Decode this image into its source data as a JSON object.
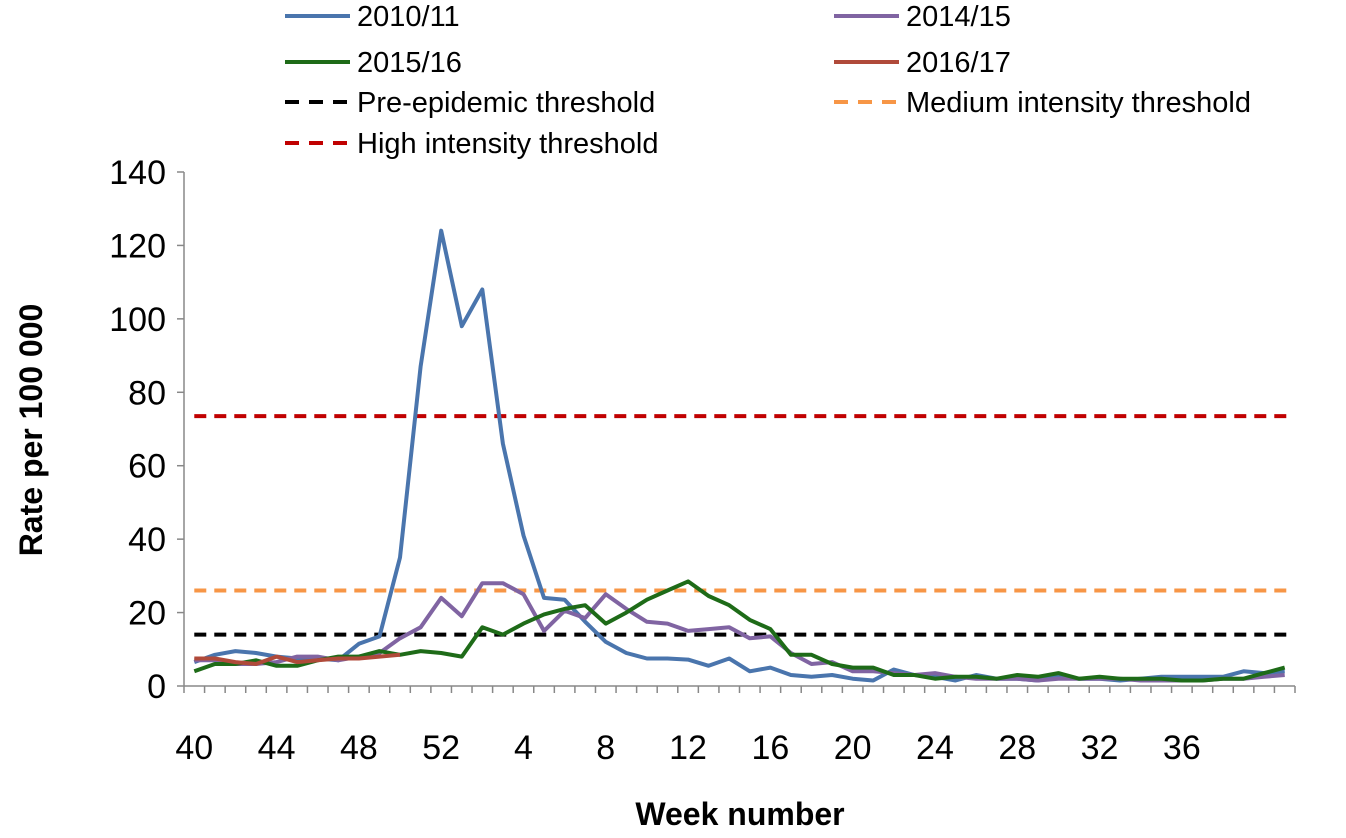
{
  "chart_data": {
    "type": "line",
    "xlabel": "Week number",
    "ylabel": "Rate per 100 000",
    "ylim": [
      0,
      140
    ],
    "yticks": [
      0,
      20,
      40,
      60,
      80,
      100,
      120,
      140
    ],
    "x_tick_labels": [
      "40",
      "44",
      "48",
      "52",
      "4",
      "8",
      "12",
      "16",
      "20",
      "24",
      "28",
      "32",
      "36"
    ],
    "grid": false,
    "legend_position": "top",
    "series": [
      {
        "name": "2010/11",
        "color": "#4a75ad",
        "style": "solid",
        "values": [
          6.5,
          8.5,
          9.5,
          9,
          8,
          7.5,
          7.5,
          7,
          11.5,
          13.5,
          35,
          87,
          124,
          98,
          108,
          66,
          41,
          24,
          23.5,
          17.5,
          12,
          9,
          7.5,
          7.5,
          7.2,
          5.5,
          7.5,
          4,
          5,
          3,
          2.5,
          3,
          2,
          1.5,
          4.5,
          3,
          2.5,
          1.5,
          3,
          2,
          2,
          1.5,
          2.5,
          2,
          2,
          1.5,
          2,
          2.5,
          2.5,
          2.5,
          2.5,
          4,
          3.5,
          4
        ]
      },
      {
        "name": "2014/15",
        "color": "#8064a2",
        "style": "solid",
        "values": [
          7,
          7,
          6,
          6,
          6.5,
          8,
          8,
          7,
          8,
          9,
          13,
          16,
          24,
          19,
          28,
          28,
          25,
          15,
          20.5,
          18.5,
          25,
          21,
          17.5,
          17,
          15,
          15.5,
          16,
          13,
          13.5,
          9,
          6,
          6.5,
          4,
          4,
          3.5,
          3,
          3.5,
          2.5,
          2,
          2,
          2,
          1.5,
          2,
          2,
          2,
          2,
          1.5,
          1.5,
          1.5,
          1.5,
          2,
          2,
          2.5,
          3
        ]
      },
      {
        "name": "2015/16",
        "color": "#1e6b18",
        "style": "solid",
        "values": [
          4,
          6,
          6,
          7,
          5.5,
          5.5,
          7,
          8,
          8,
          9.5,
          8.5,
          9.5,
          9,
          8,
          16,
          14,
          17,
          19.5,
          21,
          22,
          17,
          20,
          23.5,
          26,
          28.5,
          24.5,
          22,
          18,
          15.5,
          8.5,
          8.5,
          6,
          5,
          5,
          3,
          3,
          2,
          2.5,
          2.5,
          2,
          3,
          2.5,
          3.5,
          2,
          2.5,
          2,
          2,
          2,
          1.5,
          1.5,
          2,
          2,
          3.5,
          5
        ]
      },
      {
        "name": "2016/17",
        "color": "#b04a3a",
        "style": "solid",
        "values": [
          7.5,
          7.5,
          6.5,
          6,
          8,
          6.5,
          7,
          7.5,
          7.5,
          8,
          8.5
        ]
      }
    ],
    "thresholds": [
      {
        "name": "Pre-epidemic threshold",
        "value": 14,
        "color": "#000000",
        "style": "dashed"
      },
      {
        "name": "Medium intensity threshold",
        "value": 26,
        "color": "#f79646",
        "style": "dashed"
      },
      {
        "name": "High intensity threshold",
        "value": 73.5,
        "color": "#c00000",
        "style": "dashed"
      }
    ],
    "legend": [
      {
        "name": "2010/11",
        "color": "#4a75ad",
        "style": "solid"
      },
      {
        "name": "2014/15",
        "color": "#8064a2",
        "style": "solid"
      },
      {
        "name": "2015/16",
        "color": "#1e6b18",
        "style": "solid"
      },
      {
        "name": "2016/17",
        "color": "#b04a3a",
        "style": "solid"
      },
      {
        "name": "Pre-epidemic threshold",
        "color": "#000000",
        "style": "dashed"
      },
      {
        "name": "Medium intensity threshold",
        "color": "#f79646",
        "style": "dashed"
      },
      {
        "name": "High intensity threshold",
        "color": "#c00000",
        "style": "dashed"
      }
    ]
  }
}
